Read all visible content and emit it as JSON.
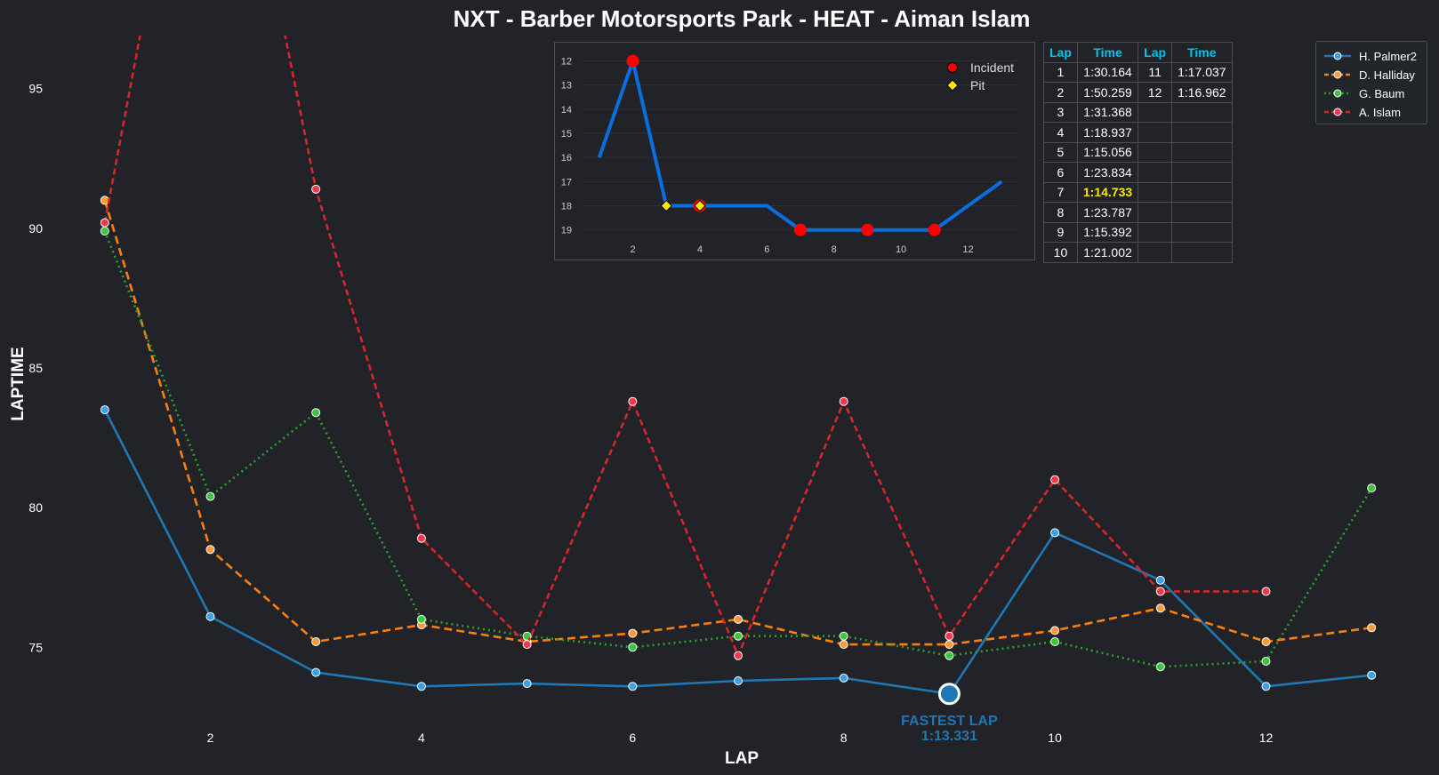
{
  "chart_data": [
    {
      "type": "line",
      "title": "NXT - Barber Motorsports Park - HEAT - Aiman Islam",
      "xlabel": "LAP",
      "ylabel": "LAPTIME",
      "xlim": [
        0.85,
        13.15
      ],
      "ylim": [
        72.4,
        96.9
      ],
      "xticks": [
        2,
        4,
        6,
        8,
        10,
        12
      ],
      "yticks": [
        75,
        80,
        85,
        90,
        95
      ],
      "grid": false,
      "legend_position": "top-right",
      "series": [
        {
          "name": "H. Palmer2",
          "color": "#1f77b4",
          "marker_color": "#3aa0e8",
          "dash": "",
          "x": [
            1,
            2,
            3,
            4,
            5,
            6,
            7,
            8,
            9,
            10,
            11,
            12,
            13
          ],
          "y": [
            83.5,
            76.1,
            74.1,
            73.6,
            73.7,
            73.6,
            73.8,
            73.9,
            73.331,
            79.1,
            77.4,
            73.6,
            74.0
          ]
        },
        {
          "name": "D. Halliday",
          "color": "#ff7f0e",
          "marker_color": "#ff9a3c",
          "dash": "9,5",
          "x": [
            1,
            2,
            3,
            4,
            5,
            6,
            7,
            8,
            9,
            10,
            11,
            12,
            13
          ],
          "y": [
            91.0,
            78.5,
            75.2,
            75.8,
            75.2,
            75.5,
            76.0,
            75.1,
            75.1,
            75.6,
            76.4,
            75.2,
            75.7
          ]
        },
        {
          "name": "G. Baum",
          "color": "#2ca02c",
          "marker_color": "#3fc43f",
          "dash": "2,4",
          "x": [
            1,
            2,
            3,
            4,
            5,
            6,
            7,
            8,
            9,
            10,
            11,
            12,
            13
          ],
          "y": [
            89.9,
            80.4,
            83.4,
            76.0,
            75.4,
            75.0,
            75.4,
            75.4,
            74.7,
            75.2,
            74.3,
            74.5,
            80.7
          ]
        },
        {
          "name": "A. Islam",
          "color": "#d62728",
          "marker_color": "#f0394a",
          "dash": "7,4",
          "x": [
            1,
            2,
            3,
            4,
            5,
            6,
            7,
            8,
            9,
            10,
            11,
            12
          ],
          "y": [
            90.2,
            110.259,
            91.4,
            78.9,
            75.1,
            83.8,
            74.7,
            83.8,
            75.4,
            81.0,
            77.0,
            77.0
          ]
        }
      ],
      "annotation": {
        "label": "FASTEST LAP",
        "value": "1:13.331",
        "x": 9,
        "y": 73.331,
        "color": "#1f77b4"
      }
    },
    {
      "type": "line",
      "ylim": [
        19.6,
        11.5
      ],
      "xlim": [
        0.5,
        13.5
      ],
      "xticks": [
        2,
        4,
        6,
        8,
        10,
        12
      ],
      "yticks": [
        12,
        13,
        14,
        15,
        16,
        17,
        18,
        19
      ],
      "color": "#0a6edc",
      "x": [
        1,
        2,
        3,
        4,
        5,
        6,
        7,
        8,
        9,
        10,
        11,
        12,
        13
      ],
      "y": [
        16,
        12,
        18,
        18,
        18,
        18,
        19,
        19,
        19,
        19,
        19,
        18,
        17
      ],
      "incident_laps": [
        2,
        4,
        7,
        9,
        11
      ],
      "pit_laps": [
        3,
        4
      ],
      "legend": [
        {
          "label": "Incident",
          "marker": "red-circle"
        },
        {
          "label": "Pit",
          "marker": "yellow-diamond"
        }
      ]
    }
  ],
  "lap_table": {
    "headers": [
      "Lap",
      "Time",
      "Lap",
      "Time"
    ],
    "rows": [
      [
        "1",
        "1:30.164",
        "11",
        "1:17.037"
      ],
      [
        "2",
        "1:50.259",
        "12",
        "1:16.962"
      ],
      [
        "3",
        "1:31.368",
        "",
        ""
      ],
      [
        "4",
        "1:18.937",
        "",
        ""
      ],
      [
        "5",
        "1:15.056",
        "",
        ""
      ],
      [
        "6",
        "1:23.834",
        "",
        ""
      ],
      [
        "7",
        "1:14.733",
        "",
        ""
      ],
      [
        "8",
        "1:23.787",
        "",
        ""
      ],
      [
        "9",
        "1:15.392",
        "",
        ""
      ],
      [
        "10",
        "1:21.002",
        "",
        ""
      ]
    ],
    "fastest_time": "1:14.733",
    "highlight_color": "#ffe600",
    "header_color": "#00c3f0"
  },
  "colors": {
    "background": "#212328",
    "panel_border": "#4a4d54",
    "text": "#ffffff",
    "incident": "#ff0000",
    "pit": "#ffe600"
  }
}
